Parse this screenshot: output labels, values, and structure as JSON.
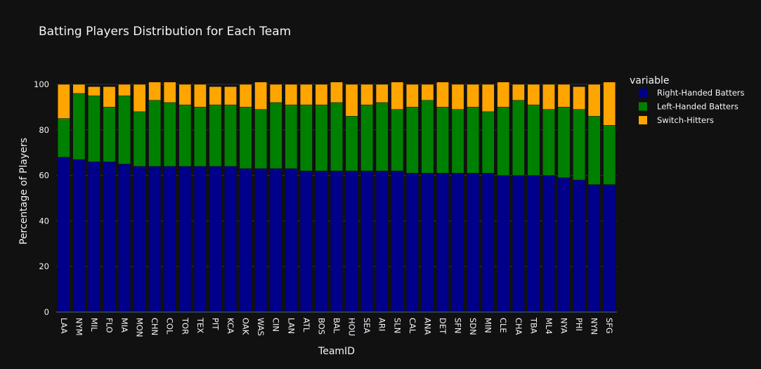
{
  "chart_data": {
    "type": "bar",
    "stacked": true,
    "title": "Batting Players Distribution for Each Team",
    "xlabel": "TeamID",
    "ylabel": "Percentage of Players",
    "ylim": [
      0,
      100
    ],
    "yticks": [
      0,
      20,
      40,
      60,
      80,
      100
    ],
    "grid": true,
    "legend": {
      "title": "variable",
      "position": "right"
    },
    "categories": [
      "LAA",
      "NYM",
      "MIL",
      "FLO",
      "MIA",
      "MON",
      "CHN",
      "COL",
      "TOR",
      "TEX",
      "PIT",
      "KCA",
      "OAK",
      "WAS",
      "CIN",
      "LAN",
      "ATL",
      "BOS",
      "BAL",
      "HOU",
      "SEA",
      "ARI",
      "SLN",
      "CAL",
      "ANA",
      "DET",
      "SFN",
      "SDN",
      "MIN",
      "CLE",
      "CHA",
      "TBA",
      "ML4",
      "NYA",
      "PHI",
      "NYN",
      "SFG"
    ],
    "series": [
      {
        "name": "Right-Handed Batters",
        "color": "#00008b",
        "values": [
          68,
          67,
          66,
          66,
          65,
          64,
          64,
          64,
          64,
          64,
          64,
          64,
          63,
          63,
          63,
          63,
          62,
          62,
          62,
          62,
          62,
          62,
          62,
          61,
          61,
          61,
          61,
          61,
          61,
          60,
          60,
          60,
          60,
          59,
          58,
          56,
          56
        ]
      },
      {
        "name": "Left-Handed Batters",
        "color": "#008000",
        "values": [
          17,
          29,
          29,
          24,
          30,
          24,
          29,
          28,
          27,
          26,
          27,
          27,
          27,
          26,
          29,
          28,
          29,
          29,
          30,
          24,
          29,
          30,
          27,
          29,
          32,
          29,
          28,
          29,
          27,
          30,
          33,
          31,
          29,
          31,
          31,
          30,
          26
        ]
      },
      {
        "name": "Switch-Hitters",
        "color": "#ffa500",
        "values": [
          15,
          4,
          4,
          9,
          5,
          12,
          8,
          9,
          9,
          10,
          8,
          8,
          10,
          12,
          8,
          9,
          9,
          9,
          9,
          14,
          9,
          8,
          12,
          10,
          7,
          11,
          11,
          10,
          12,
          11,
          7,
          9,
          11,
          10,
          10,
          14,
          19
        ]
      }
    ]
  }
}
